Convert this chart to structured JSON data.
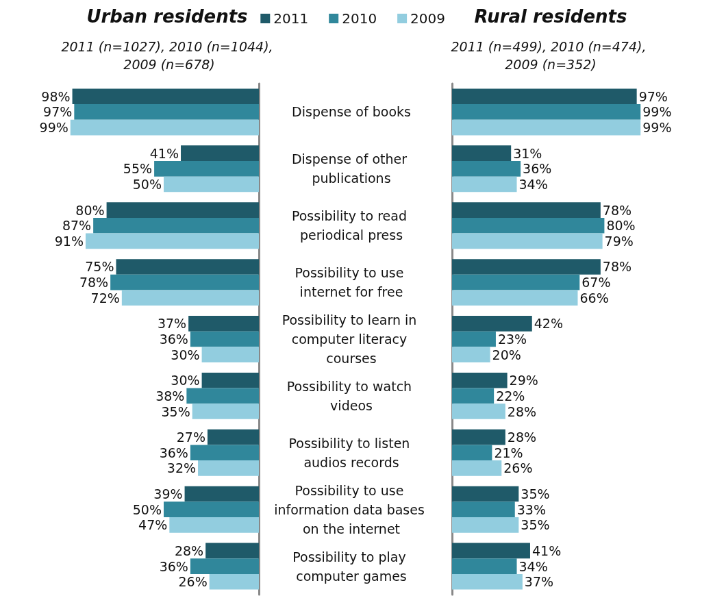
{
  "chart_data": [
    {
      "type": "bar",
      "orientation": "horizontal",
      "title": "Urban residents",
      "subtitle": "2011 (n=1027), 2010 (n=1044), 2009 (n=678)",
      "categories": [
        "Dispense of books",
        "Dispense of other publications",
        "Possibility to read periodical press",
        "Possibility to use internet for free",
        "Possibility to learn in computer literacy courses",
        "Possibility to watch videos",
        "Possibility to listen audios records",
        "Possibility to use information data bases on the internet",
        "Possibility to play computer games"
      ],
      "xlim": [
        100,
        0
      ],
      "tick_labels": "y",
      "grid": false,
      "legend": "top right",
      "series": [
        {
          "name": "2011",
          "color": "#1f5a69",
          "values": [
            98,
            41,
            80,
            75,
            37,
            30,
            27,
            39,
            28
          ],
          "value_labels": [
            "98%",
            "41%",
            "80%",
            "75%",
            "37%",
            "30%",
            "27%",
            "39%",
            "28%"
          ]
        },
        {
          "name": "2010",
          "color": "#30879b",
          "values": [
            97,
            55,
            87,
            78,
            36,
            38,
            36,
            50,
            36
          ],
          "value_labels": [
            "97%",
            "55%",
            "87%",
            "78%",
            "36%",
            "38%",
            "36%",
            "50%",
            "36%"
          ]
        },
        {
          "name": "2009",
          "color": "#92cddf",
          "values": [
            99,
            50,
            91,
            72,
            30,
            35,
            32,
            47,
            26
          ],
          "value_labels": [
            "99%",
            "50%",
            "91%",
            "72%",
            "30%",
            "35%",
            "32%",
            "47%",
            "26%"
          ]
        }
      ]
    },
    {
      "type": "bar",
      "orientation": "horizontal",
      "title": "Rural residents",
      "subtitle": "2011 (n=499), 2010 (n=474), 2009 (n=352)",
      "categories": [
        "Dispense of books",
        "Dispense of other publications",
        "Possibility to read periodical press",
        "Possibility to use internet for free",
        "Possibility to learn in computer literacy courses",
        "Possibility to watch videos",
        "Possibility to listen audios records",
        "Possibility to use information data bases on the internet",
        "Possibility to play computer games"
      ],
      "xlim": [
        0,
        100
      ],
      "tick_labels": false,
      "grid": false,
      "series": [
        {
          "color": "#1f5a69",
          "values": [
            97,
            31,
            78,
            78,
            42,
            29,
            28,
            35,
            41
          ],
          "value_labels": [
            "97%",
            "31%",
            "78%",
            "78%",
            "42%",
            "29%",
            "28%",
            "35%",
            "41%"
          ]
        },
        {
          "color": "#30879b",
          "values": [
            99,
            36,
            80,
            67,
            23,
            22,
            21,
            33,
            34
          ],
          "value_labels": [
            "99%",
            "36%",
            "80%",
            "67%",
            "23%",
            "22%",
            "21%",
            "33%",
            "34%"
          ]
        },
        {
          "color": "#92cddf",
          "values": [
            99,
            34,
            79,
            66,
            20,
            28,
            26,
            35,
            37
          ],
          "value_labels": [
            "99%",
            "34%",
            "79%",
            "66%",
            "20%",
            "28%",
            "26%",
            "35%",
            "37%"
          ]
        }
      ]
    }
  ]
}
